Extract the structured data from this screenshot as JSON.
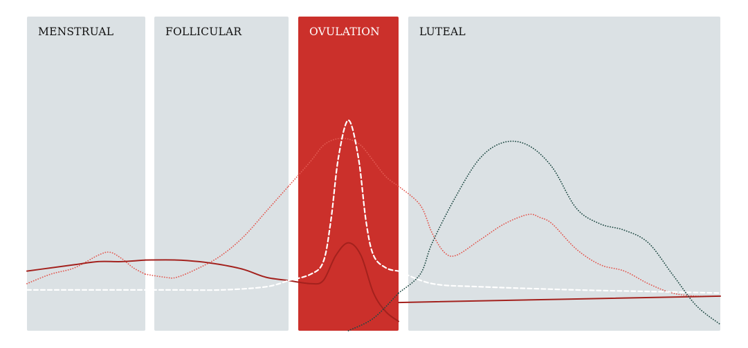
{
  "colors": {
    "panel": "#dbe1e4",
    "ovulation": "#cb302b",
    "label_dark": "#111111",
    "label_light": "#ffffff",
    "series_dark_red": "#a3211d",
    "series_light_red": "#e25a52",
    "series_white": "#ffffff",
    "series_dark_green": "#1f4a44"
  },
  "chart_data": {
    "type": "line",
    "title": "",
    "xlabel": "",
    "ylabel": "",
    "xlim": [
      0,
      28
    ],
    "ylim": [
      0,
      100
    ],
    "grid": false,
    "legend": "none",
    "phases": [
      {
        "name": "MENSTRUAL",
        "start": 0,
        "end": 5,
        "highlight": false
      },
      {
        "name": "FOLLICULAR",
        "start": 5,
        "end": 11,
        "highlight": false
      },
      {
        "name": "OVULATION",
        "start": 11,
        "end": 15,
        "highlight": true
      },
      {
        "name": "LUTEAL",
        "start": 15,
        "end": 28,
        "highlight": false
      }
    ],
    "series": [
      {
        "style": "dotted",
        "color": "series_light_red",
        "stroke_width": 1.8,
        "points": [
          [
            0,
            15
          ],
          [
            1,
            18
          ],
          [
            2,
            20
          ],
          [
            3,
            24
          ],
          [
            3.5,
            25
          ],
          [
            4,
            23
          ],
          [
            4.5,
            20
          ],
          [
            5,
            18
          ],
          [
            5.5,
            17
          ],
          [
            6,
            17
          ],
          [
            7,
            20
          ],
          [
            8,
            24
          ],
          [
            9,
            30
          ],
          [
            10,
            38
          ],
          [
            10.5,
            42
          ],
          [
            11,
            46
          ],
          [
            11.5,
            54
          ],
          [
            12,
            59
          ],
          [
            12.5,
            61
          ],
          [
            13,
            61
          ],
          [
            13.5,
            59
          ],
          [
            14,
            54
          ],
          [
            14.5,
            49
          ],
          [
            15,
            46
          ],
          [
            15.5,
            40
          ],
          [
            16,
            31
          ],
          [
            16.5,
            25
          ],
          [
            17,
            24
          ],
          [
            18,
            29
          ],
          [
            19,
            34
          ],
          [
            20,
            37
          ],
          [
            20.5,
            36
          ],
          [
            21,
            34
          ],
          [
            22,
            26
          ],
          [
            23,
            21
          ],
          [
            24,
            19
          ],
          [
            25,
            15
          ],
          [
            26,
            12
          ],
          [
            27,
            11
          ],
          [
            28,
            11
          ]
        ]
      },
      {
        "style": "solid",
        "color": "series_dark_red",
        "stroke_width": 2,
        "points": [
          [
            0,
            19
          ],
          [
            1,
            20
          ],
          [
            2,
            21
          ],
          [
            3,
            22
          ],
          [
            4,
            22
          ],
          [
            5,
            22.5
          ],
          [
            6,
            22.5
          ],
          [
            7,
            22
          ],
          [
            8,
            21
          ],
          [
            9,
            19.5
          ],
          [
            10,
            17
          ],
          [
            11,
            16
          ],
          [
            11.5,
            15
          ],
          [
            12,
            16
          ],
          [
            12.5,
            24
          ],
          [
            13,
            28
          ],
          [
            13.5,
            24
          ],
          [
            14,
            12
          ],
          [
            14.5,
            6
          ],
          [
            15,
            3
          ],
          [
            15,
            9
          ],
          [
            28,
            11
          ]
        ]
      },
      {
        "style": "dashed",
        "color": "series_white",
        "stroke_width": 2.2,
        "points": [
          [
            0,
            13
          ],
          [
            2,
            13
          ],
          [
            4,
            13
          ],
          [
            5,
            13
          ],
          [
            6,
            13
          ],
          [
            8,
            13
          ],
          [
            10,
            14
          ],
          [
            11,
            16
          ],
          [
            11.5,
            18
          ],
          [
            12,
            22
          ],
          [
            12.3,
            35
          ],
          [
            12.6,
            55
          ],
          [
            13,
            67
          ],
          [
            13.4,
            55
          ],
          [
            13.7,
            35
          ],
          [
            14,
            24
          ],
          [
            14.5,
            20
          ],
          [
            15,
            19
          ],
          [
            16,
            15
          ],
          [
            18,
            14
          ],
          [
            22,
            13
          ],
          [
            25,
            12.5
          ],
          [
            28,
            12
          ]
        ]
      },
      {
        "style": "dotted",
        "color": "series_dark_green",
        "stroke_width": 1.8,
        "points": [
          [
            13,
            0
          ],
          [
            14,
            4
          ],
          [
            15,
            12
          ],
          [
            15.5,
            18
          ],
          [
            16,
            28
          ],
          [
            17,
            43
          ],
          [
            18,
            55
          ],
          [
            19,
            60
          ],
          [
            20,
            59
          ],
          [
            21,
            52
          ],
          [
            22,
            39
          ],
          [
            23,
            34
          ],
          [
            24,
            32
          ],
          [
            25,
            28
          ],
          [
            26,
            18
          ],
          [
            27,
            8
          ],
          [
            28,
            2
          ]
        ]
      }
    ]
  }
}
